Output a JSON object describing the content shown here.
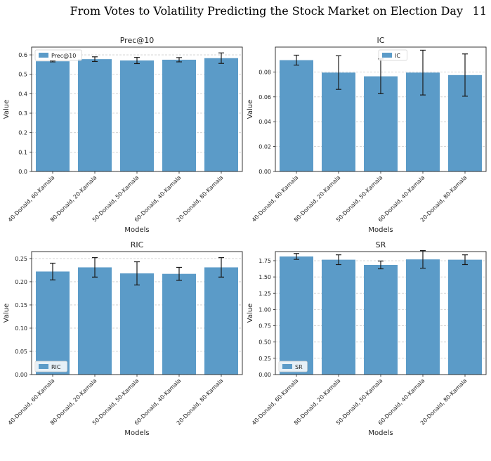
{
  "header": {
    "title": "From Votes to Volatility Predicting the Stock Market on Election Day",
    "page_number": "11"
  },
  "colors": {
    "bar": "#5b9bc8",
    "error": "#1a1a1a",
    "grid": "#cccccc"
  },
  "chart_data": [
    {
      "type": "bar",
      "title": "Prec@10",
      "xlabel": "Models",
      "ylabel": "Value",
      "categories": [
        "40-Donald, 60-Kamala",
        "80-Donald, 20-Kamala",
        "50-Donald, 50-Kamala",
        "60-Donald, 40-Kamala",
        "20-Donald, 80-Kamala"
      ],
      "series": [
        {
          "name": "Prec@10",
          "values": [
            0.567,
            0.578,
            0.571,
            0.575,
            0.583
          ],
          "errors": [
            0.003,
            0.012,
            0.016,
            0.011,
            0.027
          ]
        }
      ],
      "ylim": [
        0,
        0.64
      ],
      "yticks": [
        "0.0",
        "0.1",
        "0.2",
        "0.3",
        "0.4",
        "0.5",
        "0.6"
      ],
      "legend": "top-left",
      "grid": "y"
    },
    {
      "type": "bar",
      "title": "IC",
      "xlabel": "Models",
      "ylabel": "Value",
      "categories": [
        "40-Donald, 60-Kamala",
        "80-Donald, 20-Kamala",
        "50-Donald, 50-Kamala",
        "60-Donald, 40-Kamala",
        "20-Donald, 80-Kamala"
      ],
      "series": [
        {
          "name": "IC",
          "values": [
            0.0895,
            0.0795,
            0.0765,
            0.0795,
            0.0775
          ],
          "errors": [
            0.004,
            0.0135,
            0.014,
            0.018,
            0.017
          ]
        }
      ],
      "ylim": [
        0,
        0.1
      ],
      "yticks": [
        "0.00",
        "0.02",
        "0.04",
        "0.06",
        "0.08"
      ],
      "legend": "top-center",
      "grid": "y"
    },
    {
      "type": "bar",
      "title": "RIC",
      "xlabel": "Models",
      "ylabel": "Value",
      "categories": [
        "40-Donald, 60-Kamala",
        "80-Donald, 20-Kamala",
        "50-Donald, 50-Kamala",
        "60-Donald, 40-Kamala",
        "20-Donald, 80-Kamala"
      ],
      "series": [
        {
          "name": "RIC",
          "values": [
            0.222,
            0.231,
            0.218,
            0.217,
            0.231
          ],
          "errors": [
            0.018,
            0.021,
            0.025,
            0.014,
            0.021
          ]
        }
      ],
      "ylim": [
        0,
        0.265
      ],
      "yticks": [
        "0.00",
        "0.05",
        "0.10",
        "0.15",
        "0.20",
        "0.25"
      ],
      "legend": "bottom-left",
      "grid": "y"
    },
    {
      "type": "bar",
      "title": "SR",
      "xlabel": "Models",
      "ylabel": "Value",
      "categories": [
        "40-Donald, 60-Kamala",
        "80-Donald, 20-Kamala",
        "50-Donald, 50-Kamala",
        "60-Donald, 40-Kamala",
        "20-Donald, 80-Kamala"
      ],
      "series": [
        {
          "name": "SR",
          "values": [
            1.815,
            1.765,
            1.685,
            1.77,
            1.765
          ],
          "errors": [
            0.045,
            0.075,
            0.06,
            0.135,
            0.075
          ]
        }
      ],
      "ylim": [
        0,
        1.89
      ],
      "yticks": [
        "0.00",
        "0.25",
        "0.50",
        "0.75",
        "1.00",
        "1.25",
        "1.50",
        "1.75"
      ],
      "legend": "bottom-left",
      "grid": "y"
    }
  ]
}
